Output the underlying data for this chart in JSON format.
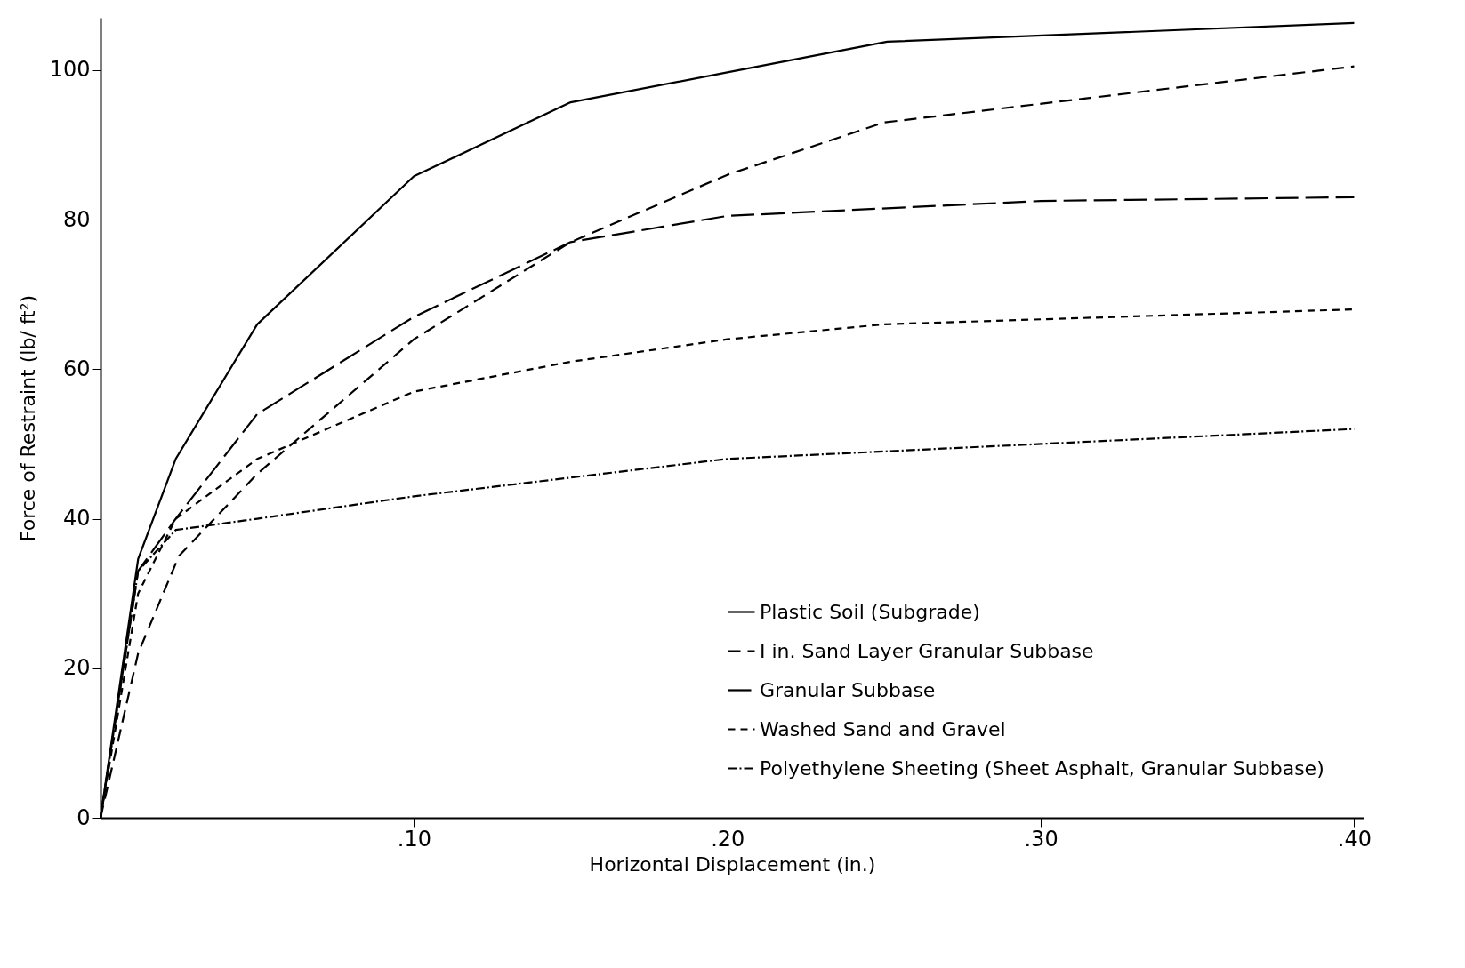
{
  "chart_data": {
    "type": "line",
    "xlabel": "Horizontal Displacement  (in.)",
    "ylabel": "Force of Restraint (lb/ ft²)",
    "xlim": [
      0,
      0.403
    ],
    "ylim": [
      0,
      107
    ],
    "xticks": [
      {
        "value": 0.1,
        "label": ".10"
      },
      {
        "value": 0.2,
        "label": ".20"
      },
      {
        "value": 0.3,
        "label": ".30"
      },
      {
        "value": 0.4,
        "label": ".40"
      }
    ],
    "yticks": [
      0,
      20,
      40,
      60,
      80,
      100
    ],
    "grid": false,
    "legend": "bottom right",
    "marker": "none",
    "series": [
      {
        "name": "Plastic Soil (Subgrade)",
        "color": "#000000",
        "line_style": "solid",
        "x": [
          0,
          0.012,
          0.024,
          0.05,
          0.1,
          0.15,
          0.2,
          0.251,
          0.4
        ],
        "values": [
          0,
          34.6,
          48,
          66,
          85.8,
          95.7,
          99.7,
          103.8,
          106.3
        ]
      },
      {
        "name": "I in. Sand Layer Granular Subbase",
        "color": "#000000",
        "line_style": "dashed",
        "x": [
          0,
          0.012,
          0.025,
          0.05,
          0.1,
          0.15,
          0.2,
          0.25,
          0.4
        ],
        "values": [
          0,
          22,
          35,
          46,
          64,
          77,
          86,
          93,
          100.5
        ]
      },
      {
        "name": "Granular Subbase",
        "color": "#000000",
        "line_style": "longdash",
        "x": [
          0,
          0.012,
          0.024,
          0.05,
          0.1,
          0.15,
          0.2,
          0.3,
          0.4
        ],
        "values": [
          0,
          33,
          40,
          54,
          67,
          77,
          80.5,
          82.5,
          83
        ]
      },
      {
        "name": "Washed Sand and Gravel",
        "color": "#000000",
        "line_style": "shortdash",
        "x": [
          0,
          0.012,
          0.024,
          0.05,
          0.1,
          0.15,
          0.2,
          0.25,
          0.4
        ],
        "values": [
          0,
          30,
          40,
          48,
          57,
          61,
          64,
          66,
          68
        ]
      },
      {
        "name": "Polyethylene Sheeting (Sheet Asphalt, Granular Subbase)",
        "color": "#000000",
        "line_style": "dashdot",
        "x": [
          0,
          0.012,
          0.024,
          0.05,
          0.1,
          0.15,
          0.2,
          0.25,
          0.3,
          0.4
        ],
        "values": [
          0,
          33,
          38.5,
          40,
          43,
          45.5,
          48,
          49,
          50,
          52
        ]
      }
    ]
  }
}
